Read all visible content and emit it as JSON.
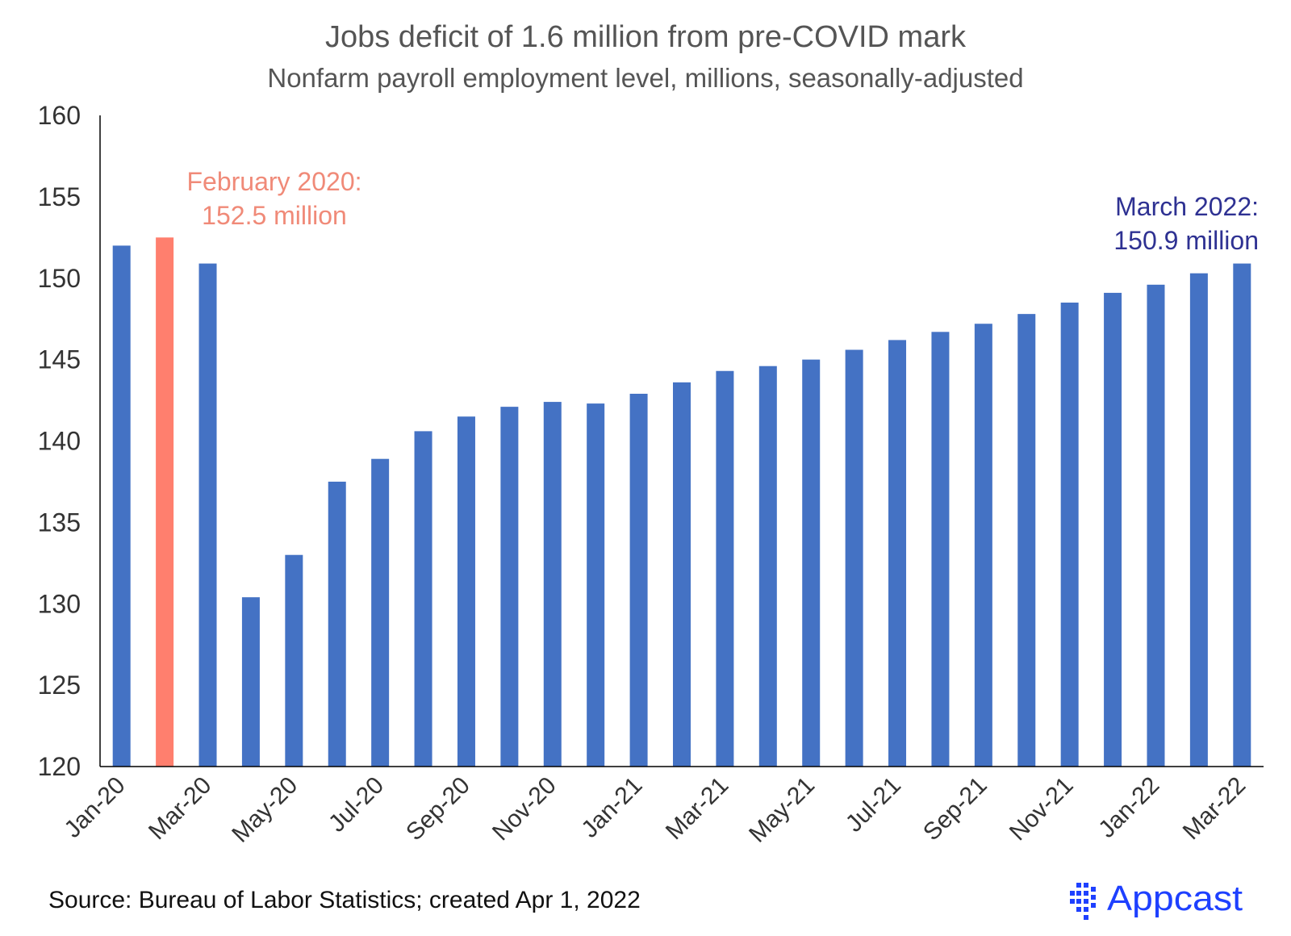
{
  "chart_data": {
    "type": "bar",
    "title": "Jobs deficit of 1.6 million from pre-COVID mark",
    "subtitle": "Nonfarm payroll employment level, millions, seasonally-adjusted",
    "xlabel": "",
    "ylabel": "",
    "ylim": [
      120,
      160
    ],
    "yticks": [
      120,
      125,
      130,
      135,
      140,
      145,
      150,
      155,
      160
    ],
    "grid": false,
    "categories": [
      "Jan-20",
      "Feb-20",
      "Mar-20",
      "Apr-20",
      "May-20",
      "Jun-20",
      "Jul-20",
      "Aug-20",
      "Sep-20",
      "Oct-20",
      "Nov-20",
      "Dec-20",
      "Jan-21",
      "Feb-21",
      "Mar-21",
      "Apr-21",
      "May-21",
      "Jun-21",
      "Jul-21",
      "Aug-21",
      "Sep-21",
      "Oct-21",
      "Nov-21",
      "Dec-21",
      "Jan-22",
      "Feb-22",
      "Mar-22"
    ],
    "visible_tick_labels": [
      "Jan-20",
      "Mar-20",
      "May-20",
      "Jul-20",
      "Sep-20",
      "Nov-20",
      "Jan-21",
      "Mar-21",
      "May-21",
      "Jul-21",
      "Sep-21",
      "Nov-21",
      "Jan-22",
      "Mar-22"
    ],
    "values": [
      152.0,
      152.5,
      150.9,
      130.4,
      133.0,
      137.5,
      138.9,
      140.6,
      141.5,
      142.1,
      142.4,
      142.3,
      142.9,
      143.6,
      144.3,
      144.6,
      145.0,
      145.6,
      146.2,
      146.7,
      147.2,
      147.8,
      148.5,
      149.1,
      149.6,
      150.3,
      150.9
    ],
    "highlight_index": 1,
    "bar_color": "#4472C4",
    "highlight_color": "#FF7F6E",
    "annotations": [
      {
        "lines": [
          "February 2020:",
          "152.5 million"
        ],
        "color": "#F08A78",
        "index": 1
      },
      {
        "lines": [
          "March 2022:",
          "150.9 million"
        ],
        "color": "#2E3192",
        "index": 26
      }
    ]
  },
  "footer": {
    "source": "Source: Bureau of Labor Statistics; created Apr 1, 2022",
    "logo_text": "Appcast",
    "logo_color": "#1E40FF"
  }
}
